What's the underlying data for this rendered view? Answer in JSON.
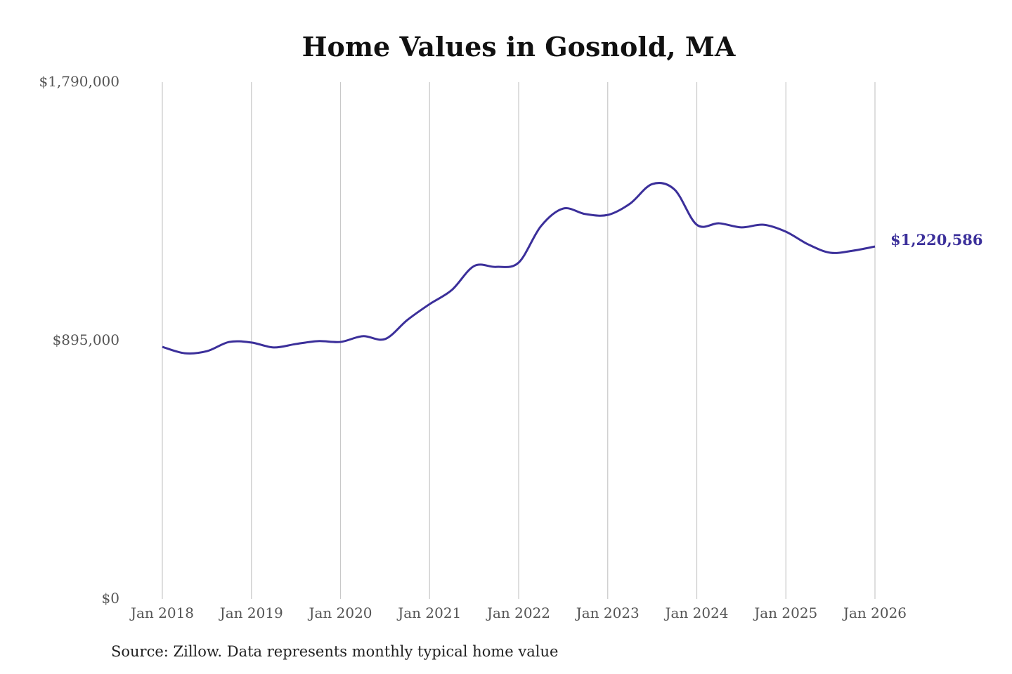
{
  "chart_data": {
    "type": "line",
    "title": "Home Values in Gosnold, MA",
    "source": "Source: Zillow. Data represents monthly typical home value",
    "xlabel": "",
    "ylabel": "",
    "ylim": [
      0,
      1790000
    ],
    "yticks": [
      0,
      895000,
      1790000
    ],
    "ytick_labels": [
      "$0",
      "$895,000",
      "$1,790,000"
    ],
    "xticks": [
      "2018-01",
      "2019-01",
      "2020-01",
      "2021-01",
      "2022-01",
      "2023-01",
      "2024-01",
      "2025-01",
      "2026-01"
    ],
    "xtick_labels": [
      "Jan 2018",
      "Jan 2019",
      "Jan 2020",
      "Jan 2021",
      "Jan 2022",
      "Jan 2023",
      "Jan 2024",
      "Jan 2025",
      "Jan 2026"
    ],
    "grid": "vertical",
    "line_color": "#3b2f9a",
    "end_label": "$1,220,586",
    "series": [
      {
        "x": [
          "2018-01",
          "2018-04",
          "2018-07",
          "2018-10",
          "2019-01",
          "2019-04",
          "2019-07",
          "2019-10",
          "2020-01",
          "2020-04",
          "2020-07",
          "2020-10",
          "2021-01",
          "2021-04",
          "2021-07",
          "2021-10",
          "2022-01",
          "2022-04",
          "2022-07",
          "2022-10",
          "2023-01",
          "2023-04",
          "2023-07",
          "2023-10",
          "2024-01",
          "2024-04",
          "2024-07",
          "2024-10",
          "2025-01",
          "2025-04",
          "2025-07",
          "2025-10",
          "2026-01"
        ],
        "values": [
          873000,
          851000,
          858000,
          890000,
          888000,
          871000,
          883000,
          893000,
          890000,
          910000,
          900000,
          966000,
          1021000,
          1070000,
          1153000,
          1150000,
          1165000,
          1291000,
          1352000,
          1333000,
          1330000,
          1369000,
          1437000,
          1418000,
          1296000,
          1301000,
          1287000,
          1296000,
          1272000,
          1228000,
          1199000,
          1206000,
          1220586
        ]
      }
    ]
  }
}
